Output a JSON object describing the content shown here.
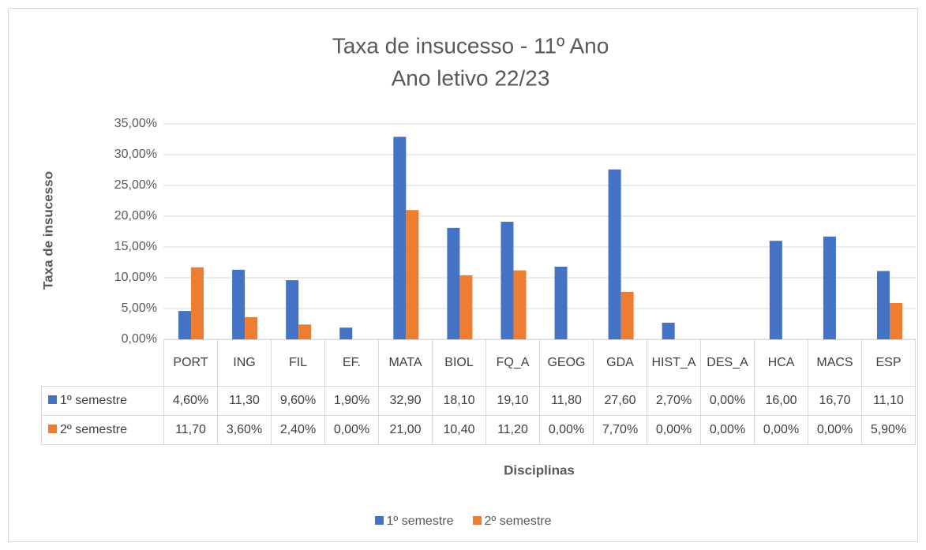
{
  "chart_data": {
    "type": "bar",
    "title": "Taxa de insucesso - 11º Ano",
    "subtitle": "Ano letivo 22/23",
    "y_label": "Taxa de insucesso",
    "x_label": "Disciplinas",
    "categories": [
      "PORT",
      "ING",
      "FIL",
      "EF.",
      "MATA",
      "BIOL",
      "FQ_A",
      "GEOG",
      "GDA",
      "HIST_A",
      "DES_A",
      "HCA",
      "MACS",
      "ESP"
    ],
    "series": [
      {
        "name": "1º semestre",
        "color": "#4472c4",
        "values": [
          4.6,
          11.3,
          9.6,
          1.9,
          32.9,
          18.1,
          19.1,
          11.8,
          27.6,
          2.7,
          0,
          16,
          16.7,
          11.1
        ],
        "value_labels": [
          "4,60%",
          "11,30",
          "9,60%",
          "1,90%",
          "32,90",
          "18,10",
          "19,10",
          "11,80",
          "27,60",
          "2,70%",
          "0,00%",
          "16,00",
          "16,70",
          "11,10"
        ]
      },
      {
        "name": "2º semestre",
        "color": "#ed7d31",
        "values": [
          11.7,
          3.6,
          2.4,
          0,
          21,
          10.4,
          11.2,
          0,
          7.7,
          0,
          0,
          0,
          0,
          5.9
        ],
        "value_labels": [
          "11,70",
          "3,60%",
          "2,40%",
          "0,00%",
          "21,00",
          "10,40",
          "11,20",
          "0,00%",
          "7,70%",
          "0,00%",
          "0,00%",
          "0,00%",
          "0,00%",
          "5,90%"
        ]
      }
    ],
    "ylim": [
      0,
      35
    ],
    "yticks": [
      {
        "value": 0,
        "label": "0,00%"
      },
      {
        "value": 5,
        "label": "5,00%"
      },
      {
        "value": 10,
        "label": "10,00%"
      },
      {
        "value": 15,
        "label": "15,00%"
      },
      {
        "value": 20,
        "label": "20,00%"
      },
      {
        "value": 25,
        "label": "25,00%"
      },
      {
        "value": 30,
        "label": "30,00%"
      },
      {
        "value": 35,
        "label": "35,00%"
      }
    ],
    "grid": true
  }
}
